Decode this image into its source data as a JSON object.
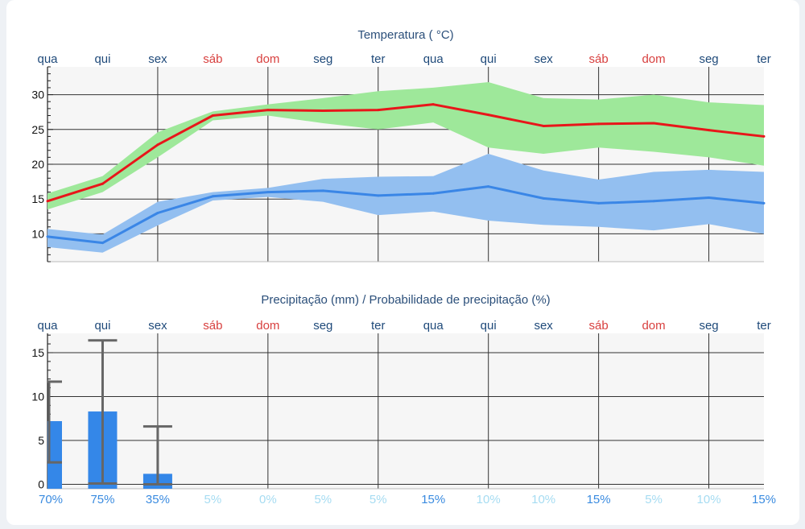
{
  "colors": {
    "weekday": "#1f4a7a",
    "weekend": "#d8403f",
    "max_line": "#e8161a",
    "max_band": "#9ee89a",
    "min_line": "#3a86e6",
    "min_band": "#93bff0",
    "bar": "#3487e8",
    "errorbar": "#666666",
    "prob_strong": "#3a8be0",
    "prob_weak": "#a6dcf2"
  },
  "days": [
    {
      "label": "qua",
      "weekend": false
    },
    {
      "label": "qui",
      "weekend": false
    },
    {
      "label": "sex",
      "weekend": false
    },
    {
      "label": "sáb",
      "weekend": true
    },
    {
      "label": "dom",
      "weekend": true
    },
    {
      "label": "seg",
      "weekend": false
    },
    {
      "label": "ter",
      "weekend": false
    },
    {
      "label": "qua",
      "weekend": false
    },
    {
      "label": "qui",
      "weekend": false
    },
    {
      "label": "sex",
      "weekend": false
    },
    {
      "label": "sáb",
      "weekend": true
    },
    {
      "label": "dom",
      "weekend": true
    },
    {
      "label": "seg",
      "weekend": false
    },
    {
      "label": "ter",
      "weekend": false
    }
  ],
  "chart_data": [
    {
      "type": "line",
      "title": "Temperatura ( °C)",
      "ylim": [
        6,
        34
      ],
      "yticks": [
        10,
        15,
        20,
        25,
        30
      ],
      "grid": true,
      "series": [
        {
          "key": "max",
          "values": [
            14.7,
            17.2,
            22.8,
            27.0,
            27.8,
            27.7,
            27.8,
            28.6,
            27.1,
            25.5,
            25.8,
            25.9,
            24.9,
            24.0
          ],
          "band_low": [
            13.5,
            16.0,
            21.0,
            26.3,
            27.0,
            25.9,
            25.0,
            26.0,
            22.4,
            21.5,
            22.4,
            21.8,
            21.0,
            19.8
          ],
          "band_high": [
            15.8,
            18.3,
            24.6,
            27.6,
            28.6,
            29.5,
            30.5,
            31.0,
            31.8,
            29.5,
            29.3,
            30.0,
            28.9,
            28.5
          ]
        },
        {
          "key": "min",
          "values": [
            9.6,
            8.7,
            13.0,
            15.4,
            16.0,
            16.2,
            15.5,
            15.8,
            16.8,
            15.1,
            14.4,
            14.7,
            15.2,
            14.4
          ],
          "band_low": [
            8.1,
            7.3,
            11.2,
            14.8,
            15.3,
            14.6,
            12.7,
            13.2,
            11.9,
            11.3,
            11.0,
            10.5,
            11.4,
            10.0
          ],
          "band_high": [
            10.7,
            9.9,
            14.6,
            16.0,
            16.6,
            17.9,
            18.2,
            18.3,
            21.5,
            19.1,
            17.8,
            18.9,
            19.2,
            18.9
          ]
        }
      ]
    },
    {
      "type": "bar",
      "title": "Precipitação (mm) / Probabilidade de precipitação (%)",
      "ylim": [
        -0.5,
        17.2
      ],
      "yticks": [
        0,
        5,
        10,
        15
      ],
      "grid": true,
      "values": [
        7.2,
        8.3,
        1.2,
        0,
        0,
        0,
        0,
        0,
        0,
        0,
        0,
        0,
        0,
        0
      ],
      "error_low": [
        2.5,
        0.1,
        0.0,
        null,
        null,
        null,
        null,
        null,
        null,
        null,
        null,
        null,
        null,
        null
      ],
      "error_high": [
        11.7,
        16.4,
        6.6,
        null,
        null,
        null,
        null,
        null,
        null,
        null,
        null,
        null,
        null,
        null
      ],
      "probabilities": [
        "70%",
        "75%",
        "35%",
        "5%",
        "0%",
        "5%",
        "5%",
        "15%",
        "10%",
        "10%",
        "15%",
        "5%",
        "10%",
        "15%"
      ]
    }
  ]
}
